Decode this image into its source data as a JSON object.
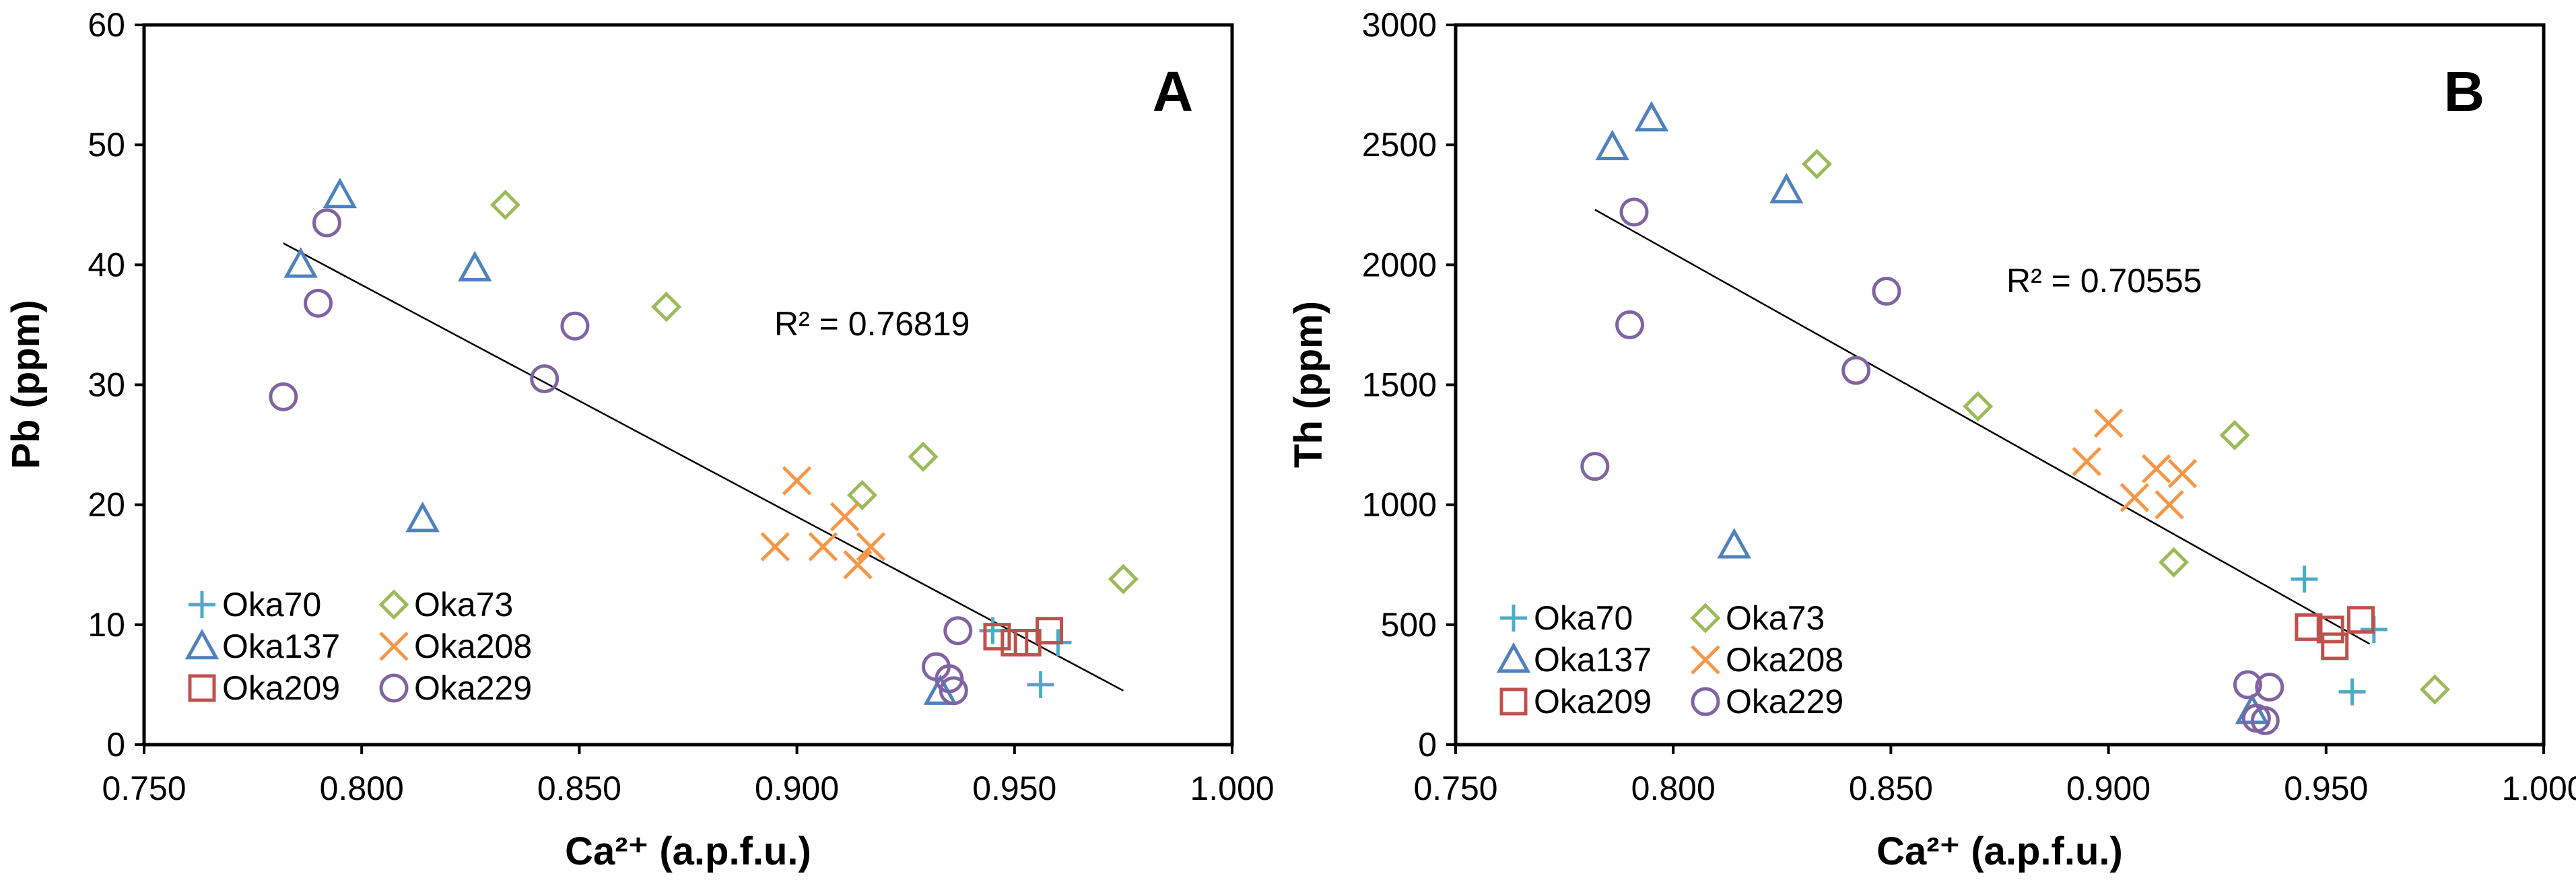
{
  "chart_data": [
    {
      "type": "scatter",
      "panel_label": "A",
      "title": "",
      "xlabel": "Ca²⁺ (a.p.f.u.)",
      "ylabel": "Pb (ppm)",
      "xlim": [
        0.75,
        1.0
      ],
      "ylim": [
        0,
        60
      ],
      "x_ticks": [
        0.75,
        0.8,
        0.85,
        0.9,
        0.95,
        1.0
      ],
      "x_tick_labels": [
        "0.750",
        "0.800",
        "0.850",
        "0.900",
        "0.950",
        "1.000"
      ],
      "y_ticks": [
        0,
        10,
        20,
        30,
        40,
        50,
        60
      ],
      "y_tick_labels": [
        "0",
        "10",
        "20",
        "30",
        "40",
        "50",
        "60"
      ],
      "grid": false,
      "legend_position": "bottom-left",
      "r_squared_label": "R² = 0.76819",
      "trendline": {
        "x": [
          0.782,
          0.975
        ],
        "y": [
          41.8,
          4.5
        ]
      },
      "series": [
        {
          "name": "Oka70",
          "marker": "plus",
          "color": "#4bacc6",
          "points": [
            [
              0.945,
              9.5
            ],
            [
              0.96,
              8.5
            ],
            [
              0.956,
              5.0
            ]
          ]
        },
        {
          "name": "Oka73",
          "marker": "diamond",
          "color": "#9bbb59",
          "points": [
            [
              0.833,
              45.0
            ],
            [
              0.87,
              36.5
            ],
            [
              0.929,
              24.0
            ],
            [
              0.915,
              20.8
            ],
            [
              0.975,
              13.8
            ]
          ]
        },
        {
          "name": "Oka137",
          "marker": "triangle",
          "color": "#4f81bd",
          "points": [
            [
              0.795,
              45.8
            ],
            [
              0.786,
              40.0
            ],
            [
              0.826,
              39.7
            ],
            [
              0.814,
              18.8
            ],
            [
              0.933,
              4.4
            ]
          ]
        },
        {
          "name": "Oka208",
          "marker": "x",
          "color": "#f79646",
          "points": [
            [
              0.9,
              22.0
            ],
            [
              0.911,
              19.0
            ],
            [
              0.895,
              16.5
            ],
            [
              0.906,
              16.5
            ],
            [
              0.917,
              16.5
            ],
            [
              0.914,
              15.0
            ]
          ]
        },
        {
          "name": "Oka209",
          "marker": "square",
          "color": "#c0504d",
          "points": [
            [
              0.958,
              9.5
            ],
            [
              0.946,
              9.0
            ],
            [
              0.95,
              8.5
            ],
            [
              0.953,
              8.5
            ]
          ]
        },
        {
          "name": "Oka229",
          "marker": "circle",
          "color": "#8064a2",
          "points": [
            [
              0.792,
              43.5
            ],
            [
              0.79,
              36.8
            ],
            [
              0.849,
              34.9
            ],
            [
              0.842,
              30.5
            ],
            [
              0.782,
              29.0
            ],
            [
              0.937,
              9.5
            ],
            [
              0.932,
              6.5
            ],
            [
              0.935,
              5.5
            ],
            [
              0.936,
              4.5
            ]
          ]
        }
      ]
    },
    {
      "type": "scatter",
      "panel_label": "B",
      "title": "",
      "xlabel": "Ca²⁺ (a.p.f.u.)",
      "ylabel": "Th (ppm)",
      "xlim": [
        0.75,
        1.0
      ],
      "ylim": [
        0,
        3000
      ],
      "x_ticks": [
        0.75,
        0.8,
        0.85,
        0.9,
        0.95,
        1.0
      ],
      "x_tick_labels": [
        "0.750",
        "0.800",
        "0.850",
        "0.900",
        "0.950",
        "1.000"
      ],
      "y_ticks": [
        0,
        500,
        1000,
        1500,
        2000,
        2500,
        3000
      ],
      "y_tick_labels": [
        "0",
        "500",
        "1000",
        "1500",
        "2000",
        "2500",
        "3000"
      ],
      "grid": false,
      "legend_position": "bottom-left",
      "r_squared_label": "R² = 0.70555",
      "trendline": {
        "x": [
          0.782,
          0.96
        ],
        "y": [
          2230,
          420
        ]
      },
      "series": [
        {
          "name": "Oka70",
          "marker": "plus",
          "color": "#4bacc6",
          "points": [
            [
              0.945,
              690
            ],
            [
              0.961,
              480
            ],
            [
              0.956,
              220
            ]
          ]
        },
        {
          "name": "Oka73",
          "marker": "diamond",
          "color": "#9bbb59",
          "points": [
            [
              0.833,
              2420
            ],
            [
              0.87,
              1410
            ],
            [
              0.929,
              1290
            ],
            [
              0.915,
              760
            ],
            [
              0.975,
              230
            ]
          ]
        },
        {
          "name": "Oka137",
          "marker": "triangle",
          "color": "#4f81bd",
          "points": [
            [
              0.795,
              2610
            ],
            [
              0.786,
              2490
            ],
            [
              0.826,
              2310
            ],
            [
              0.814,
              830
            ],
            [
              0.933,
              140
            ]
          ]
        },
        {
          "name": "Oka208",
          "marker": "x",
          "color": "#f79646",
          "points": [
            [
              0.9,
              1340
            ],
            [
              0.895,
              1180
            ],
            [
              0.911,
              1150
            ],
            [
              0.917,
              1130
            ],
            [
              0.906,
              1030
            ],
            [
              0.914,
              1000
            ]
          ]
        },
        {
          "name": "Oka209",
          "marker": "square",
          "color": "#c0504d",
          "points": [
            [
              0.958,
              520
            ],
            [
              0.946,
              490
            ],
            [
              0.951,
              480
            ],
            [
              0.952,
              410
            ]
          ]
        },
        {
          "name": "Oka229",
          "marker": "circle",
          "color": "#8064a2",
          "points": [
            [
              0.791,
              2220
            ],
            [
              0.849,
              1890
            ],
            [
              0.79,
              1750
            ],
            [
              0.842,
              1560
            ],
            [
              0.782,
              1160
            ],
            [
              0.932,
              250
            ],
            [
              0.937,
              240
            ],
            [
              0.934,
              110
            ],
            [
              0.936,
              100
            ]
          ]
        }
      ]
    }
  ]
}
